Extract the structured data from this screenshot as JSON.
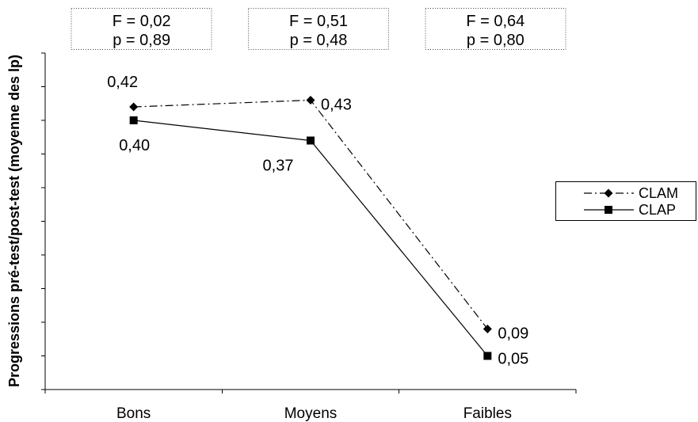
{
  "chart_data": {
    "type": "line",
    "categories": [
      "Bons",
      "Moyens",
      "Faibles"
    ],
    "series": [
      {
        "name": "CLAM",
        "values": [
          0.42,
          0.43,
          0.09
        ],
        "labels": [
          "0,42",
          "0,43",
          "0,09"
        ],
        "line_style": "dash-dot",
        "marker": "diamond",
        "color": "#000000"
      },
      {
        "name": "CLAP",
        "values": [
          0.4,
          0.37,
          0.05
        ],
        "labels": [
          "0,40",
          "0,37",
          "0,05"
        ],
        "line_style": "solid",
        "marker": "square",
        "color": "#000000"
      }
    ],
    "ylabel": "Progressions pré-test/post-test (moyenne des lp)",
    "ylim": [
      0,
      0.5
    ],
    "yticks": [
      0,
      0.05,
      0.1,
      0.15,
      0.2,
      0.25,
      0.3,
      0.35,
      0.4,
      0.45,
      0.5
    ],
    "grid": false,
    "legend": "right",
    "annotations": [
      {
        "line1": "F = 0,02",
        "line2": "p = 0,89"
      },
      {
        "line1": "F = 0,51",
        "line2": "p = 0,48"
      },
      {
        "line1": "F = 0,64",
        "line2": "p = 0,80"
      }
    ]
  }
}
